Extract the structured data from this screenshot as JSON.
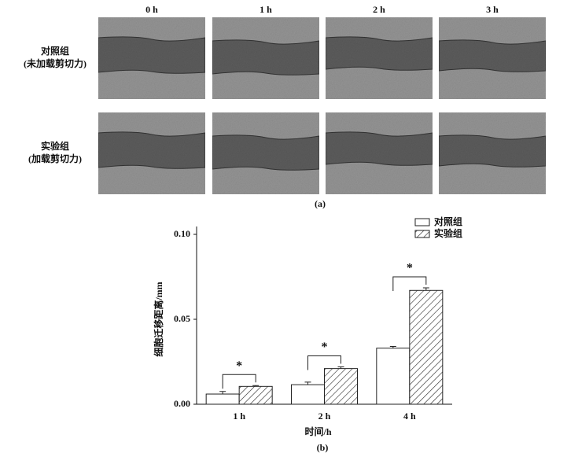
{
  "panel_a": {
    "column_headers": [
      "0 h",
      "1 h",
      "2 h",
      "3 h"
    ],
    "row_labels": [
      [
        "对照组",
        "(未加载剪切力)"
      ],
      [
        "实验组",
        "(加载剪切力)"
      ]
    ],
    "label": "(a)"
  },
  "chart_data": {
    "type": "bar",
    "label": "(b)",
    "x_label": "时间/h",
    "y_label": "细胞迁移距离/mm",
    "categories": [
      "1 h",
      "2 h",
      "4 h"
    ],
    "series": [
      {
        "name": "对照组",
        "color": "#ffffff",
        "hatch": false,
        "values": [
          0.006,
          0.0115,
          0.033
        ],
        "errors": [
          0.0015,
          0.0015,
          0.001
        ]
      },
      {
        "name": "实验组",
        "color": "#ffffff",
        "hatch": true,
        "values": [
          0.0105,
          0.021,
          0.067
        ],
        "errors": [
          0.0005,
          0.001,
          0.0015
        ]
      }
    ],
    "significance": [
      "*",
      "*",
      "*"
    ],
    "ylim": [
      0,
      0.1
    ],
    "yticks": [
      {
        "value": 0,
        "label": "0.00"
      },
      0.05,
      {
        "value": 0.1,
        "label": "0.10"
      }
    ],
    "legend": "top-right"
  }
}
